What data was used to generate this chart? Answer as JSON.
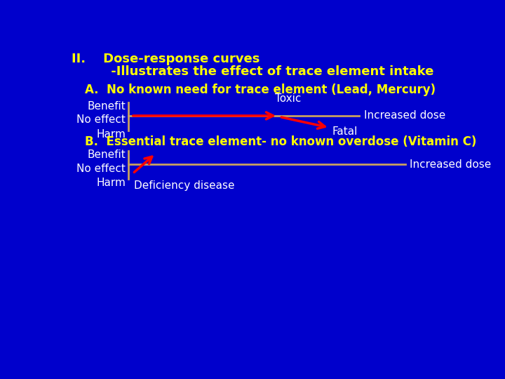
{
  "background_color": "#0000CC",
  "title_line1": "II.    Dose-response curves",
  "title_line2": "         -Illustrates the effect of trace element intake",
  "section_a": "A.  No known need for trace element (Lead, Mercury)",
  "section_b": "B.  Essential trace element- no known overdose (Vitamin C)",
  "text_color_yellow": "#FFFF00",
  "text_color_white": "#FFFFFF",
  "line_color": "#C8A060",
  "arrow_color": "#FF0000",
  "font_size_title": 13,
  "font_size_section": 12,
  "font_size_label": 11
}
